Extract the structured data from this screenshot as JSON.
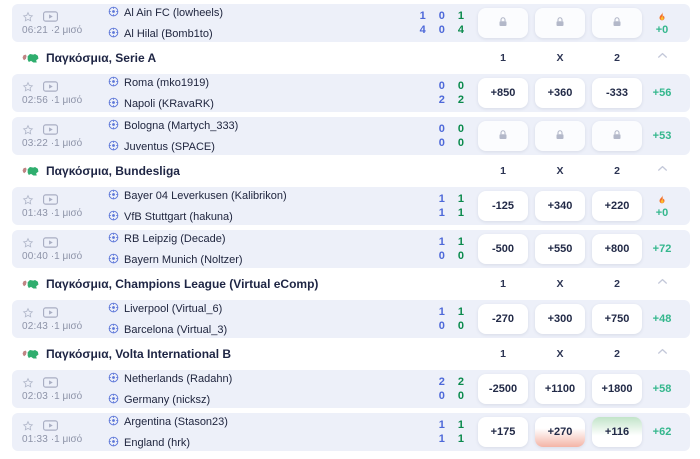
{
  "header_columns": [
    "1",
    "X",
    "2"
  ],
  "colors": {
    "row_background": "#edf0f9",
    "score_half": "#4d68d9",
    "score_total": "#0a8a4c",
    "more_markets": "#34b78d",
    "text_dark": "#20263f",
    "text_gray": "#8d93a8",
    "odds_up_tint": "#c2e4c9",
    "odds_down_tint": "#f4b4a6",
    "flame_orange": "#f4722b"
  },
  "icons": {
    "favorite": "star-icon",
    "live_stream": "play-video-icon",
    "team": "soccer-ball-icon",
    "section": "world-map-icon",
    "locked_odds": "lock-icon",
    "boost": "fire-icon",
    "collapse": "chevron-up-icon"
  },
  "sections": [
    {
      "title": null,
      "matches": [
        {
          "time": "06:21",
          "period": "·2 μισό",
          "teams": [
            {
              "name": "Al Ain FC (lowheels)"
            },
            {
              "name": "Al Hilal (Bomb1to)"
            }
          ],
          "score_columns": [
            {
              "color": "blue",
              "values": [
                "1",
                "4"
              ]
            },
            {
              "color": "blue",
              "values": [
                "0",
                "0"
              ]
            },
            {
              "color": "green",
              "values": [
                "1",
                "4"
              ]
            }
          ],
          "odds": [
            {
              "locked": true
            },
            {
              "locked": true
            },
            {
              "locked": true
            }
          ],
          "meta": {
            "fire": true,
            "value": "+0"
          }
        }
      ]
    },
    {
      "title": "Παγκόσμια, Serie A",
      "matches": [
        {
          "time": "02:56",
          "period": "·1 μισό",
          "teams": [
            {
              "name": "Roma (mko1919)"
            },
            {
              "name": "Napoli (KRavaRK)"
            }
          ],
          "score_columns": [
            {
              "color": "blue",
              "values": [
                "0",
                "2"
              ]
            },
            {
              "color": "green",
              "values": [
                "0",
                "2"
              ]
            }
          ],
          "odds": [
            {
              "value": "+850"
            },
            {
              "value": "+360"
            },
            {
              "value": "-333"
            }
          ],
          "meta": {
            "value": "+56"
          }
        },
        {
          "time": "03:22",
          "period": "·1 μισό",
          "teams": [
            {
              "name": "Bologna (Martych_333)"
            },
            {
              "name": "Juventus (SPACE)"
            }
          ],
          "score_columns": [
            {
              "color": "blue",
              "values": [
                "0",
                "0"
              ]
            },
            {
              "color": "green",
              "values": [
                "0",
                "0"
              ]
            }
          ],
          "odds": [
            {
              "locked": true
            },
            {
              "locked": true
            },
            {
              "locked": true
            }
          ],
          "meta": {
            "value": "+53"
          }
        }
      ]
    },
    {
      "title": "Παγκόσμια, Bundesliga",
      "matches": [
        {
          "time": "01:43",
          "period": "·1 μισό",
          "teams": [
            {
              "name": "Bayer 04 Leverkusen (Kalibrikon)"
            },
            {
              "name": "VfB Stuttgart (hakuna)"
            }
          ],
          "score_columns": [
            {
              "color": "blue",
              "values": [
                "1",
                "1"
              ]
            },
            {
              "color": "green",
              "values": [
                "1",
                "1"
              ]
            }
          ],
          "odds": [
            {
              "value": "-125"
            },
            {
              "value": "+340"
            },
            {
              "value": "+220"
            }
          ],
          "meta": {
            "fire": true,
            "value": "+0"
          }
        },
        {
          "time": "00:40",
          "period": "·1 μισό",
          "teams": [
            {
              "name": "RB Leipzig (Decade)"
            },
            {
              "name": "Bayern Munich (Noltzer)"
            }
          ],
          "score_columns": [
            {
              "color": "blue",
              "values": [
                "1",
                "0"
              ]
            },
            {
              "color": "green",
              "values": [
                "1",
                "0"
              ]
            }
          ],
          "odds": [
            {
              "value": "-500"
            },
            {
              "value": "+550"
            },
            {
              "value": "+800"
            }
          ],
          "meta": {
            "value": "+72"
          }
        }
      ]
    },
    {
      "title": "Παγκόσμια, Champions League (Virtual eComp)",
      "matches": [
        {
          "time": "02:43",
          "period": "·1 μισό",
          "teams": [
            {
              "name": "Liverpool (Virtual_6)"
            },
            {
              "name": "Barcelona (Virtual_3)"
            }
          ],
          "score_columns": [
            {
              "color": "blue",
              "values": [
                "1",
                "0"
              ]
            },
            {
              "color": "green",
              "values": [
                "1",
                "0"
              ]
            }
          ],
          "odds": [
            {
              "value": "-270"
            },
            {
              "value": "+300"
            },
            {
              "value": "+750"
            }
          ],
          "meta": {
            "value": "+48"
          }
        }
      ]
    },
    {
      "title": "Παγκόσμια, Volta International B",
      "matches": [
        {
          "time": "02:03",
          "period": "·1 μισό",
          "teams": [
            {
              "name": "Netherlands (Radahn)"
            },
            {
              "name": "Germany (nicksz)"
            }
          ],
          "score_columns": [
            {
              "color": "blue",
              "values": [
                "2",
                "0"
              ]
            },
            {
              "color": "green",
              "values": [
                "2",
                "0"
              ]
            }
          ],
          "odds": [
            {
              "value": "-2500"
            },
            {
              "value": "+1100"
            },
            {
              "value": "+1800"
            }
          ],
          "meta": {
            "value": "+58"
          }
        },
        {
          "time": "01:33",
          "period": "·1 μισό",
          "teams": [
            {
              "name": "Argentina (Stason23)"
            },
            {
              "name": "England (hrk)"
            }
          ],
          "score_columns": [
            {
              "color": "blue",
              "values": [
                "1",
                "1"
              ]
            },
            {
              "color": "green",
              "values": [
                "1",
                "1"
              ]
            }
          ],
          "odds": [
            {
              "value": "+175"
            },
            {
              "value": "+270",
              "trend": "down"
            },
            {
              "value": "+116",
              "trend": "up"
            }
          ],
          "meta": {
            "value": "+62"
          }
        }
      ]
    }
  ]
}
